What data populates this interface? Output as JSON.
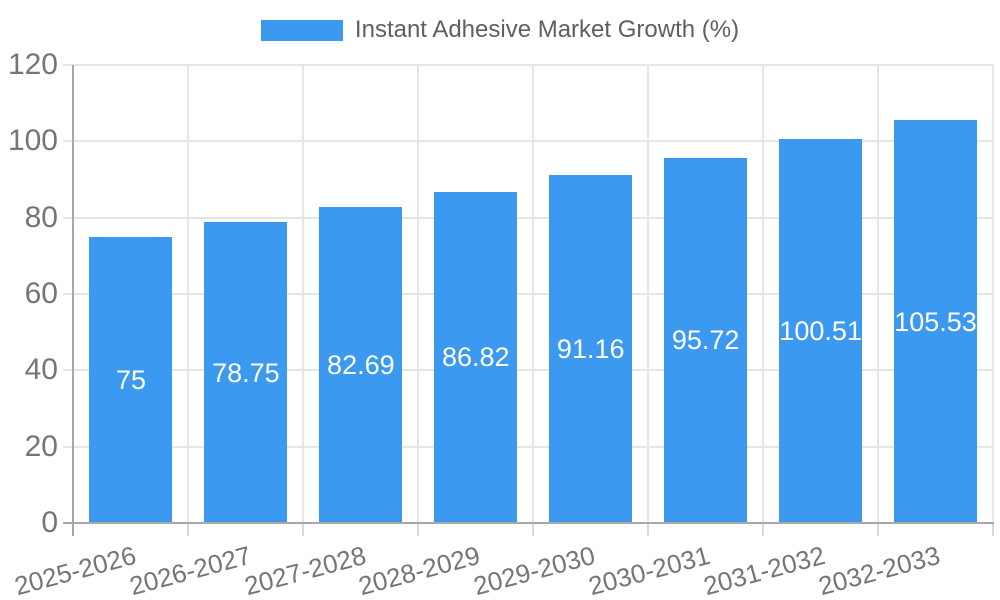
{
  "chart_data": {
    "type": "bar",
    "title": "",
    "legend": "Instant Adhesive Market Growth (%)",
    "legend_position": "top-center",
    "categories": [
      "2025-2026",
      "2026-2027",
      "2027-2028",
      "2028-2029",
      "2029-2030",
      "2030-2031",
      "2031-2032",
      "2032-2033"
    ],
    "values": [
      75,
      78.75,
      82.69,
      86.82,
      91.16,
      95.72,
      100.51,
      105.53
    ],
    "value_labels": [
      "75",
      "78.75",
      "82.69",
      "86.82",
      "91.16",
      "95.72",
      "100.51",
      "105.53"
    ],
    "xlabel": "",
    "ylabel": "",
    "ylim": [
      0,
      120
    ],
    "yticks": [
      0,
      20,
      40,
      60,
      80,
      100,
      120
    ],
    "grid": true,
    "colors": {
      "bar": "#3B99F0",
      "grid": "#E6E6E6",
      "axis": "#A8A8A8",
      "tick_text": "#757575",
      "legend_text": "#5F5F5F",
      "value_text": "#FFFFFF",
      "background": "#FFFFFF"
    }
  }
}
